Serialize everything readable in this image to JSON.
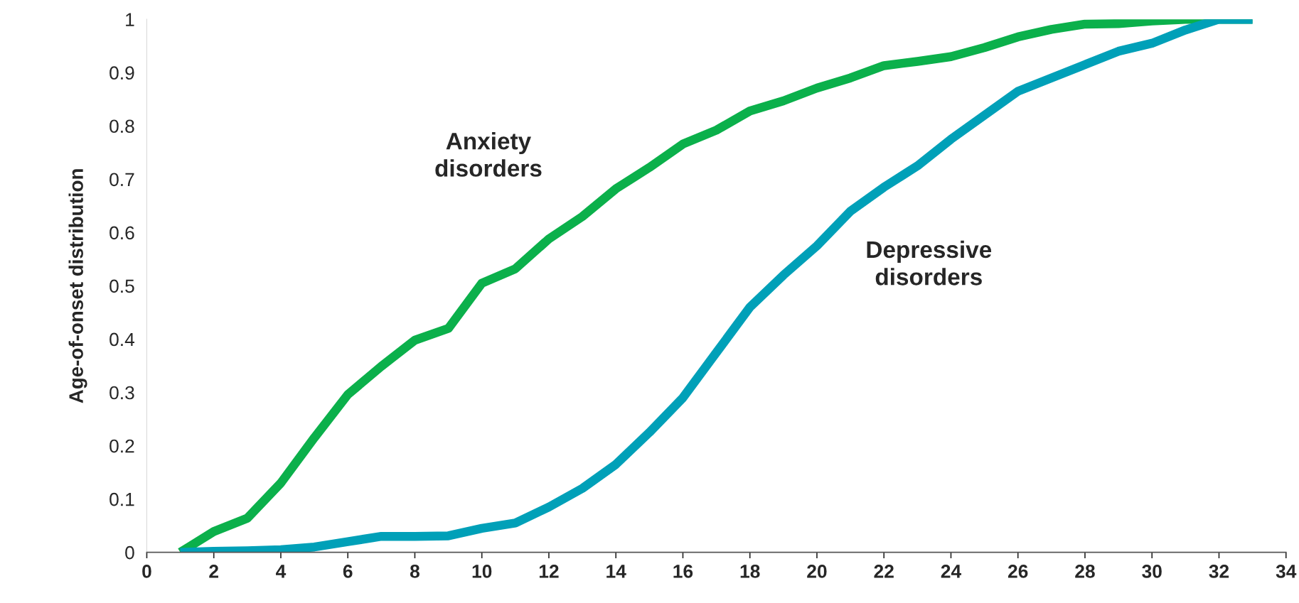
{
  "chart_data": {
    "type": "line",
    "ylabel": "Age-of-onset distribution",
    "x": [
      1,
      2,
      3,
      4,
      5,
      6,
      7,
      8,
      9,
      10,
      11,
      12,
      13,
      14,
      15,
      16,
      17,
      18,
      19,
      20,
      21,
      22,
      23,
      24,
      25,
      26,
      27,
      28,
      29,
      30,
      31,
      32,
      33
    ],
    "series": [
      {
        "name": "Anxiety disorders",
        "color": "#0bb04b",
        "values": [
          0,
          0.039,
          0.064,
          0.13,
          0.215,
          0.296,
          0.349,
          0.398,
          0.42,
          0.505,
          0.532,
          0.588,
          0.63,
          0.682,
          0.722,
          0.766,
          0.792,
          0.828,
          0.847,
          0.871,
          0.89,
          0.913,
          0.921,
          0.93,
          0.947,
          0.967,
          0.981,
          0.991,
          0.992,
          0.997,
          1,
          1,
          1
        ]
      },
      {
        "name": "Depressive disorders",
        "color": "#00a0b8",
        "values": [
          0,
          0.002,
          0.003,
          0.005,
          0.01,
          0.02,
          0.03,
          0.03,
          0.031,
          0.045,
          0.055,
          0.085,
          0.12,
          0.165,
          0.225,
          0.29,
          0.375,
          0.46,
          0.52,
          0.575,
          0.64,
          0.685,
          0.725,
          0.775,
          0.82,
          0.865,
          0.89,
          0.915,
          0.94,
          0.955,
          0.98,
          1,
          1
        ]
      }
    ],
    "xlim": [
      0,
      34
    ],
    "xticks": [
      0,
      2,
      4,
      6,
      8,
      10,
      12,
      14,
      16,
      18,
      20,
      22,
      24,
      26,
      28,
      30,
      32,
      34
    ],
    "ylim": [
      0,
      1
    ],
    "yticks": [
      0,
      0.1,
      0.2,
      0.3,
      0.4,
      0.5,
      0.6,
      0.7,
      0.8,
      0.9,
      1
    ],
    "grid": false,
    "legend": false,
    "marker": "none",
    "line_style": "solid"
  }
}
